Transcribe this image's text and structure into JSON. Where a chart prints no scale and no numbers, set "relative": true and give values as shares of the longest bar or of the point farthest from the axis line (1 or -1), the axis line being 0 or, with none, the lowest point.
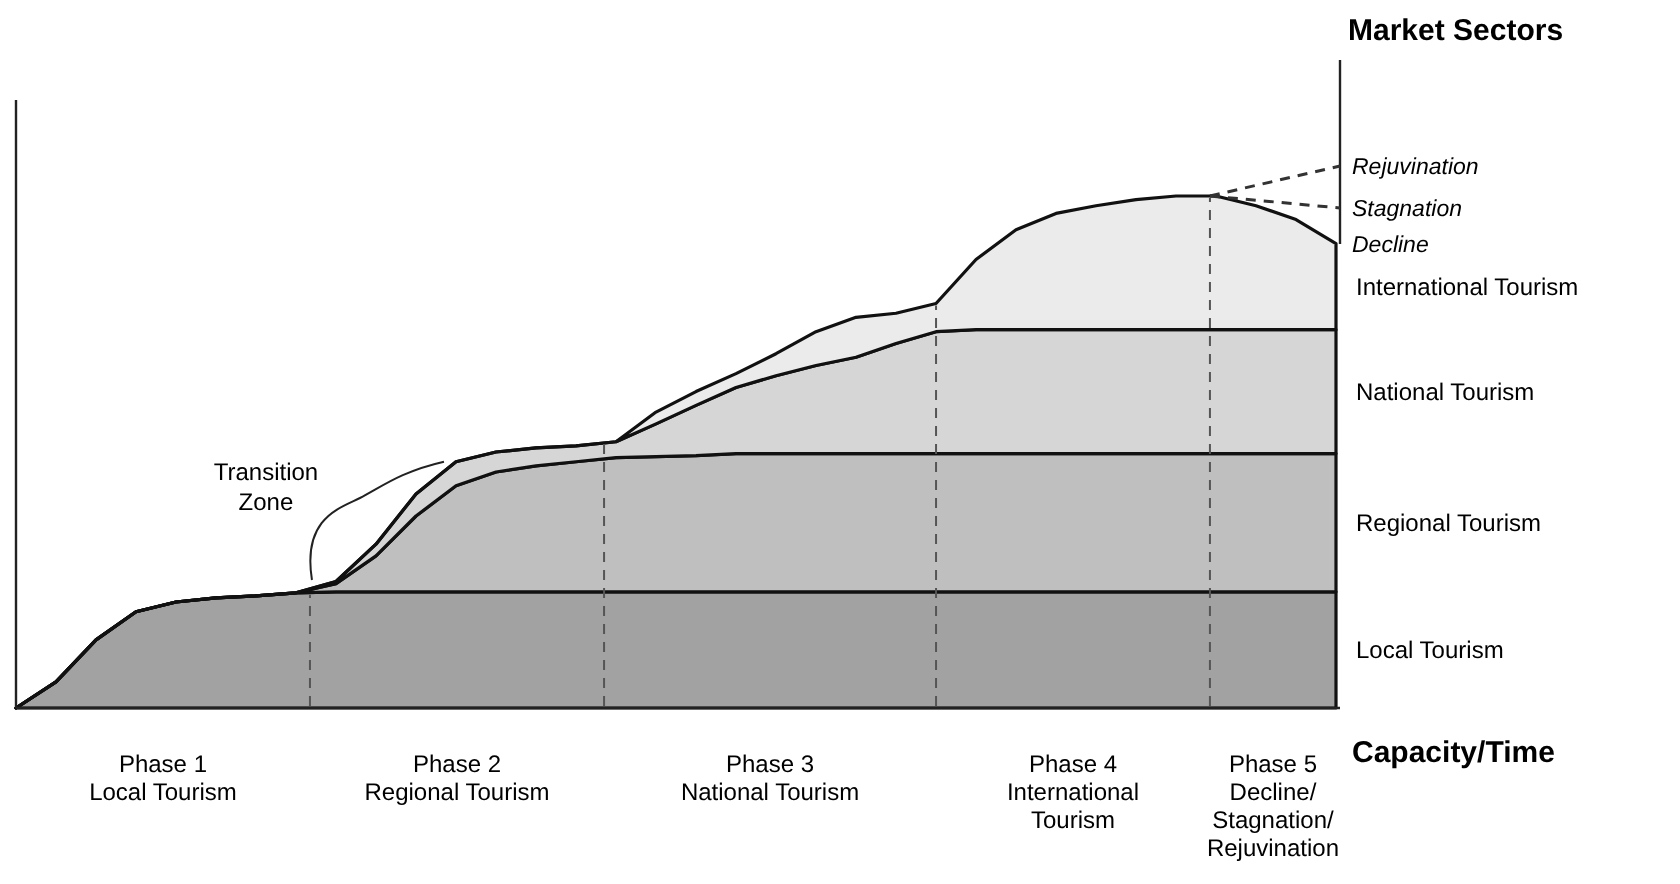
{
  "chart_data": {
    "type": "area",
    "stacked": true,
    "relative": true,
    "title": "Market Sectors",
    "xlabel": "Capacity/Time",
    "categories": [
      null,
      null,
      null,
      null,
      null,
      null,
      null,
      null,
      null,
      null,
      null,
      null,
      null,
      null,
      null,
      null,
      null,
      null,
      null,
      null,
      null,
      null,
      null,
      null,
      null,
      null,
      null,
      null,
      null,
      null,
      null,
      null,
      null,
      null
    ],
    "series": [
      {
        "name": "Local Tourism",
        "color": "#a2a2a2",
        "values": [
          0,
          0.051,
          0.133,
          0.188,
          0.207,
          0.215,
          0.219,
          0.225,
          0.227,
          0.227,
          0.227,
          0.227,
          0.227,
          0.227,
          0.227,
          0.227,
          0.227,
          0.227,
          0.227,
          0.227,
          0.227,
          0.227,
          0.227,
          0.227,
          0.227,
          0.227,
          0.227,
          0.227,
          0.227,
          0.227,
          0.227,
          0.227,
          0.227,
          0.227
        ]
      },
      {
        "name": "Regional Tourism",
        "color": "#bfbfbf",
        "values": [
          0,
          0,
          0,
          0,
          0,
          0,
          0,
          0,
          0.016,
          0.07,
          0.148,
          0.207,
          0.234,
          0.246,
          0.254,
          0.262,
          0.264,
          0.266,
          0.27,
          0.27,
          0.27,
          0.27,
          0.27,
          0.27,
          0.27,
          0.27,
          0.27,
          0.27,
          0.27,
          0.27,
          0.27,
          0.27,
          0.27,
          0.27
        ]
      },
      {
        "name": "National Tourism",
        "color": "#d6d6d6",
        "values": [
          0,
          0,
          0,
          0,
          0,
          0,
          0,
          0,
          0.004,
          0.023,
          0.043,
          0.047,
          0.039,
          0.035,
          0.031,
          0.031,
          0.064,
          0.098,
          0.129,
          0.152,
          0.172,
          0.188,
          0.215,
          0.238,
          0.242,
          0.242,
          0.242,
          0.242,
          0.242,
          0.242,
          0.242,
          0.242,
          0.242,
          0.242
        ]
      },
      {
        "name": "International Tourism",
        "color": "#ebebeb",
        "values": [
          0,
          0,
          0,
          0,
          0,
          0,
          0,
          0,
          0,
          0,
          0,
          0,
          0,
          0,
          0,
          0,
          0.023,
          0.027,
          0.027,
          0.043,
          0.066,
          0.078,
          0.059,
          0.055,
          0.137,
          0.195,
          0.227,
          0.242,
          0.254,
          0.261,
          0.261,
          0.242,
          0.215,
          0.168
        ]
      }
    ],
    "annotations": [
      "Phase 1\nLocal Tourism",
      "Phase 2\nRegional Tourism",
      "Phase 3\nNational Tourism",
      "Phase 4\nInternational\nTourism",
      "Phase 5\nDecline/\nStagnation/\nRejuvination",
      "Transition\nZone",
      "Rejuvination",
      "Stagnation",
      "Decline"
    ],
    "legend": false
  }
}
